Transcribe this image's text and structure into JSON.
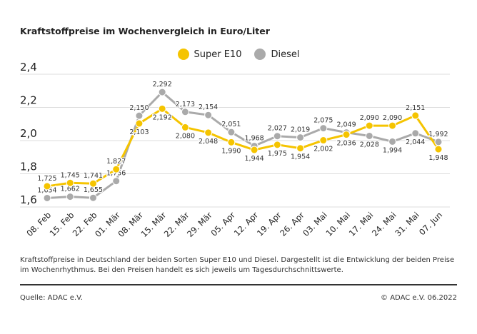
{
  "chart_data": {
    "type": "line",
    "title": "Kraftstoffpreise im Wochenvergleich in Euro/Liter",
    "categories": [
      "08. Feb",
      "15. Feb",
      "22. Feb",
      "01. Mär",
      "08. Mär",
      "15. Mär",
      "22. Mär",
      "29. Mär",
      "05. Apr",
      "12. Apr",
      "19. Apr",
      "26. Apr",
      "03. Mai",
      "10. Mai",
      "17. Mai",
      "24. Mai",
      "31. Mai",
      "07. Jun"
    ],
    "series": [
      {
        "name": "Super E10",
        "color": "#f5c400",
        "values": [
          1.725,
          1.745,
          1.741,
          1.827,
          2.103,
          2.192,
          2.08,
          2.048,
          1.99,
          1.944,
          1.975,
          1.954,
          2.002,
          2.036,
          2.09,
          2.09,
          2.151,
          1.948
        ]
      },
      {
        "name": "Diesel",
        "color": "#aaaaaa",
        "values": [
          1.654,
          1.662,
          1.655,
          1.756,
          2.15,
          2.292,
          2.173,
          2.154,
          2.051,
          1.968,
          2.027,
          2.019,
          2.075,
          2.049,
          2.028,
          1.994,
          2.044,
          1.992
        ]
      }
    ],
    "yticks": [
      "1,6",
      "1,8",
      "2,0",
      "2,2",
      "2,4"
    ],
    "ylim": [
      1.6,
      2.4
    ],
    "grid": true,
    "legend": "top-center",
    "xlabel": "",
    "ylabel": ""
  },
  "description": "Kraftstoffpreise in Deutschland der beiden Sorten Super E10 und Diesel. Dargestellt ist die Entwicklung der beiden Preise im Wochenrhythmus. Bei den Preisen handelt es sich jeweils um Tagesdurchschnittswerte.",
  "source": "Quelle: ADAC e.V.",
  "copyright": "© ADAC e.V. 06.2022"
}
